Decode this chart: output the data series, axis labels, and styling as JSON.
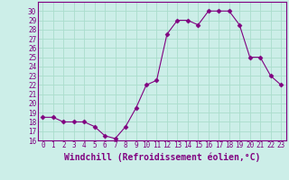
{
  "x": [
    0,
    1,
    2,
    3,
    4,
    5,
    6,
    7,
    8,
    9,
    10,
    11,
    12,
    13,
    14,
    15,
    16,
    17,
    18,
    19,
    20,
    21,
    22,
    23
  ],
  "y": [
    18.5,
    18.5,
    18.0,
    18.0,
    18.0,
    17.5,
    16.5,
    16.2,
    17.5,
    19.5,
    22.0,
    22.5,
    27.5,
    29.0,
    29.0,
    28.5,
    30.0,
    30.0,
    30.0,
    28.5,
    25.0,
    25.0,
    23.0,
    22.0
  ],
  "line_color": "#800080",
  "marker": "D",
  "marker_size": 2.5,
  "bg_color": "#cceee8",
  "grid_color": "#aaddcc",
  "xlabel": "Windchill (Refroidissement éolien,°C)",
  "ylim": [
    16,
    31
  ],
  "xlim": [
    -0.5,
    23.5
  ],
  "yticks": [
    16,
    17,
    18,
    19,
    20,
    21,
    22,
    23,
    24,
    25,
    26,
    27,
    28,
    29,
    30
  ],
  "xticks": [
    0,
    1,
    2,
    3,
    4,
    5,
    6,
    7,
    8,
    9,
    10,
    11,
    12,
    13,
    14,
    15,
    16,
    17,
    18,
    19,
    20,
    21,
    22,
    23
  ],
  "tick_label_size": 5.5,
  "xlabel_size": 7.0,
  "spine_color": "#800080",
  "tick_color": "#800080"
}
